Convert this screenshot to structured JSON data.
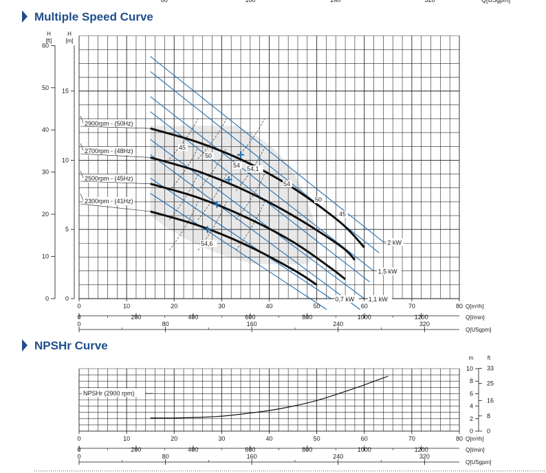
{
  "chart_data": [
    {
      "type": "line",
      "title": "Multiple Speed Curve",
      "x_axes": {
        "q_m3h": {
          "unit": "Q[m³/h]",
          "range": [
            0,
            80
          ],
          "ticks": [
            0,
            10,
            20,
            30,
            40,
            50,
            60,
            70,
            80
          ]
        },
        "q_lmin": {
          "unit": "Q[l/min]",
          "ticks": [
            0,
            200,
            400,
            600,
            800,
            1000,
            1200
          ]
        },
        "q_usgpm": {
          "unit": "Q[USgpm]",
          "ticks": [
            0,
            80,
            160,
            240,
            320
          ]
        }
      },
      "y_axes": {
        "h_ft": {
          "unit": "H [ft]",
          "ticks": [
            0,
            10,
            20,
            30,
            40,
            50,
            60
          ]
        },
        "h_m": {
          "unit": "H [m]",
          "range": [
            0,
            19
          ],
          "ticks": [
            0,
            5,
            10,
            15
          ]
        }
      },
      "grid": true,
      "top_axis_labels": [
        "80",
        "160",
        "240",
        "320",
        "Q[USgpm]"
      ],
      "series": [
        {
          "name": "2900rpm - (50Hz)",
          "x": [
            15,
            25,
            35,
            45,
            55,
            60
          ],
          "y": [
            12.3,
            11.3,
            9.9,
            8.0,
            5.5,
            3.7
          ]
        },
        {
          "name": "2700rpm - (48Hz)",
          "x": [
            15,
            25,
            35,
            45,
            55,
            58
          ],
          "y": [
            10.2,
            9.2,
            7.8,
            6.0,
            3.8,
            2.8
          ]
        },
        {
          "name": "2500rpm - (45Hz)",
          "x": [
            15,
            25,
            35,
            45,
            53,
            56
          ],
          "y": [
            8.3,
            7.3,
            5.9,
            4.1,
            2.2,
            1.4
          ]
        },
        {
          "name": "2300rpm - (41Hz)",
          "x": [
            15,
            25,
            35,
            45,
            50
          ],
          "y": [
            6.3,
            5.3,
            3.9,
            2.1,
            1.0
          ]
        }
      ],
      "power_lines": [
        {
          "label": "2 kW",
          "from": [
            15,
            17.5
          ],
          "to": [
            64,
            4.1
          ]
        },
        {
          "label": "1,5 kW",
          "from": [
            15,
            14.6
          ],
          "to": [
            62,
            2.0
          ]
        },
        {
          "label": "1,1 kW",
          "from": [
            15,
            11.5
          ],
          "to": [
            60,
            0
          ]
        },
        {
          "label": "0,7 kW",
          "from": [
            15,
            8.7
          ],
          "to": [
            53,
            0
          ]
        }
      ],
      "efficiency_labels": [
        "45",
        "50",
        "54",
        "54,1",
        "54",
        "50",
        "45",
        "54,6"
      ],
      "bep_points": [
        {
          "x": 34,
          "y": 10.4
        },
        {
          "x": 31.5,
          "y": 8.6
        },
        {
          "x": 29,
          "y": 6.8
        },
        {
          "x": 27,
          "y": 5.0
        }
      ]
    },
    {
      "type": "line",
      "title": "NPSHr Curve",
      "x_axes": {
        "q_m3h": {
          "unit": "Q[m³/h]",
          "range": [
            0,
            80
          ],
          "ticks": [
            0,
            10,
            20,
            30,
            40,
            50,
            60,
            70,
            80
          ]
        },
        "q_lmin": {
          "unit": "Q[l/min]",
          "ticks": [
            0,
            200,
            400,
            600,
            800,
            1000,
            1200
          ]
        },
        "q_usgpm": {
          "unit": "Q[USgpm]",
          "ticks": [
            0,
            80,
            160,
            240,
            320
          ]
        }
      },
      "y_axes": {
        "npsh_m": {
          "unit": "m",
          "range": [
            0,
            10
          ],
          "ticks": [
            0,
            2,
            4,
            6,
            8,
            10
          ]
        },
        "npsh_ft": {
          "unit": "ft",
          "ticks": [
            0,
            8,
            16,
            25,
            33
          ]
        }
      },
      "grid": true,
      "series": [
        {
          "name": "NPSHr (2900 rpm)",
          "x": [
            15,
            20,
            25,
            30,
            35,
            40,
            45,
            50,
            55,
            60,
            65
          ],
          "y": [
            2.1,
            2.1,
            2.2,
            2.4,
            2.8,
            3.3,
            4.0,
            4.9,
            6.1,
            7.4,
            8.8
          ]
        }
      ]
    }
  ]
}
